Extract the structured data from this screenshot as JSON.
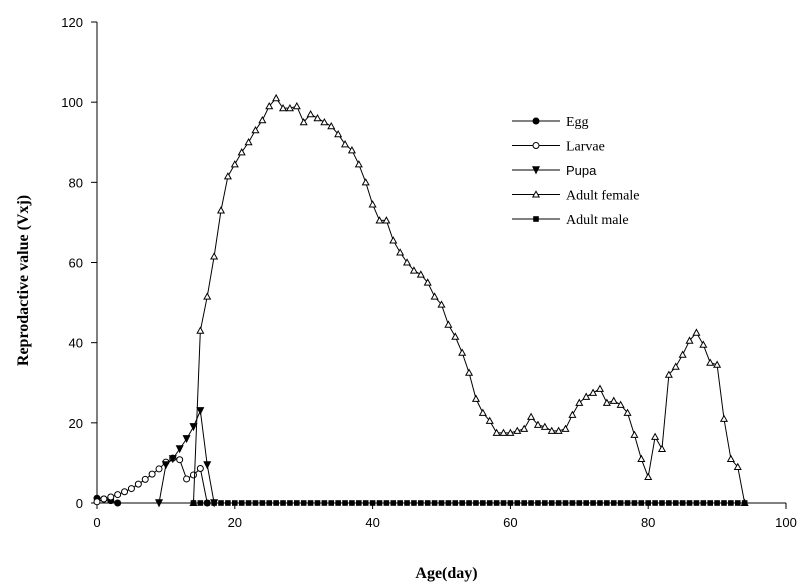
{
  "chart_data": {
    "type": "line",
    "title": "",
    "xlabel": "Age(day)",
    "ylabel": "Reprodactive value (Vxj)",
    "xlim": [
      0,
      100
    ],
    "ylim": [
      0,
      120
    ],
    "xticks": [
      0,
      20,
      40,
      60,
      80,
      100
    ],
    "yticks": [
      0,
      20,
      40,
      60,
      80,
      100,
      120
    ],
    "grid": false,
    "legend_position": "top-right",
    "series": [
      {
        "name": "Egg",
        "marker": "filled-circle",
        "x": [
          0,
          1,
          2,
          3
        ],
        "y": [
          1.2,
          1.0,
          0.6,
          0.0
        ]
      },
      {
        "name": "Larvae",
        "marker": "open-circle",
        "x": [
          0,
          1,
          2,
          3,
          4,
          5,
          6,
          7,
          8,
          9,
          10,
          11,
          12,
          13,
          14,
          15,
          16
        ],
        "y": [
          0.3,
          1.0,
          1.5,
          2.1,
          2.8,
          3.6,
          4.7,
          5.9,
          7.2,
          8.5,
          10.2,
          11.2,
          10.8,
          6.0,
          7.0,
          8.6,
          0.0
        ]
      },
      {
        "name": "Pupa",
        "marker": "filled-triangle-down",
        "x": [
          9,
          10,
          11,
          12,
          13,
          14,
          15,
          16,
          17
        ],
        "y": [
          0.0,
          9.5,
          11.0,
          13.5,
          16.0,
          19.0,
          23.0,
          9.5,
          0.0
        ]
      },
      {
        "name": "Adult female",
        "marker": "open-triangle-up",
        "x": [
          14,
          15,
          16,
          17,
          18,
          19,
          20,
          21,
          22,
          23,
          24,
          25,
          26,
          27,
          28,
          29,
          30,
          31,
          32,
          33,
          34,
          35,
          36,
          37,
          38,
          39,
          40,
          41,
          42,
          43,
          44,
          45,
          46,
          47,
          48,
          49,
          50,
          51,
          52,
          53,
          54,
          55,
          56,
          57,
          58,
          59,
          60,
          61,
          62,
          63,
          64,
          65,
          66,
          67,
          68,
          69,
          70,
          71,
          72,
          73,
          74,
          75,
          76,
          77,
          78,
          79,
          80,
          81,
          82,
          83,
          84,
          85,
          86,
          87,
          88,
          89,
          90,
          91,
          92,
          93,
          94
        ],
        "y": [
          0.0,
          43.0,
          51.5,
          61.5,
          73.0,
          81.5,
          84.5,
          87.5,
          90.0,
          93.0,
          95.5,
          99.0,
          101.0,
          98.5,
          98.5,
          99.0,
          95.0,
          97.0,
          96.0,
          95.0,
          94.0,
          92.0,
          89.5,
          88.0,
          84.5,
          80.0,
          74.5,
          70.5,
          70.5,
          65.5,
          62.5,
          60.0,
          58.0,
          57.0,
          55.0,
          51.5,
          49.5,
          44.5,
          41.5,
          37.5,
          32.5,
          26.0,
          22.5,
          20.5,
          17.5,
          17.5,
          17.5,
          18.0,
          18.5,
          21.5,
          19.5,
          19.0,
          18.0,
          18.0,
          18.5,
          22.0,
          25.0,
          26.5,
          27.5,
          28.5,
          25.0,
          25.5,
          24.5,
          22.5,
          17.0,
          11.0,
          6.5,
          16.5,
          13.5,
          32.0,
          34.0,
          37.0,
          40.5,
          42.5,
          39.5,
          35.0,
          34.5,
          21.0,
          11.0,
          9.0,
          0.0
        ]
      },
      {
        "name": "Adult male",
        "marker": "filled-square",
        "x_range": [
          14,
          94
        ],
        "y": 0
      }
    ]
  }
}
